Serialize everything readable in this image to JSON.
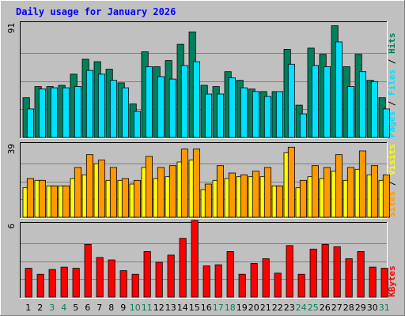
{
  "colors": {
    "background": "#c0c0c0",
    "plot_bg": "#c0c0c0",
    "hits": "#00805c",
    "files": "#00e0ff",
    "pages": "#00e0ff",
    "visits": "#ffff00",
    "sites": "#ff9900",
    "kbytes": "#ff0000",
    "title": "#0000ff",
    "weekend": "#00805c"
  },
  "chart_data": {
    "type": "bar",
    "title": "Daily usage for January 2026",
    "categories": [
      "1",
      "2",
      "3",
      "4",
      "5",
      "6",
      "7",
      "8",
      "9",
      "10",
      "11",
      "12",
      "13",
      "14",
      "15",
      "16",
      "17",
      "18",
      "19",
      "20",
      "21",
      "22",
      "23",
      "24",
      "25",
      "26",
      "27",
      "28",
      "29",
      "30",
      "31"
    ],
    "weekend_days": [
      "3",
      "4",
      "10",
      "11",
      "17",
      "18",
      "24",
      "25",
      "31"
    ],
    "panels": [
      {
        "name": "requests",
        "ymax": 91,
        "ymax_label": "91",
        "right_label": [
          "Pages",
          " / ",
          "Files",
          " / ",
          "Hits"
        ],
        "right_label_colors": [
          "#00e0ff",
          "#000000",
          "#00e0ff",
          "#000000",
          "#00805c"
        ],
        "series": [
          {
            "name": "Hits",
            "color": "#00805c",
            "values": [
              32,
              41,
              41,
              42,
              51,
              63,
              61,
              55,
              44,
              27,
              69,
              57,
              62,
              75,
              85,
              42,
              41,
              53,
              46,
              39,
              37,
              37,
              71,
              26,
              72,
              67,
              90,
              57,
              67,
              46,
              32
            ]
          },
          {
            "name": "Files",
            "color": "#00e0ff",
            "values": [
              23,
              39,
              40,
              40,
              41,
              54,
              51,
              46,
              40,
              21,
              57,
              49,
              47,
              58,
              61,
              35,
              35,
              48,
              40,
              37,
              33,
              37,
              59,
              19,
              58,
              57,
              77,
              41,
              53,
              45,
              23
            ]
          },
          {
            "name": "Pages",
            "color": "#00e0ff",
            "values": [
              23,
              39,
              40,
              40,
              41,
              54,
              51,
              46,
              40,
              21,
              57,
              49,
              47,
              58,
              61,
              35,
              35,
              48,
              40,
              37,
              33,
              37,
              59,
              19,
              58,
              57,
              77,
              41,
              53,
              45,
              23
            ]
          }
        ]
      },
      {
        "name": "visitors",
        "ymax": 39,
        "ymax_label": "39",
        "right_label": [
          "Sites",
          " / ",
          "Visits"
        ],
        "right_label_colors": [
          "#ff9900",
          "#000000",
          "#ffff00"
        ],
        "series": [
          {
            "name": "Visits",
            "color": "#ffff00",
            "values": [
              16,
              20,
              17,
              17,
              21,
              23,
              29,
              20,
              20,
              18,
              27,
              21,
              22,
              30,
              31,
              15,
              20,
              21,
              22,
              22,
              22,
              17,
              35,
              16,
              22,
              21,
              25,
              20,
              26,
              23,
              20
            ]
          },
          {
            "name": "Sites",
            "color": "#ff9900",
            "values": [
              21,
              20,
              17,
              17,
              27,
              34,
              31,
              27,
              21,
              20,
              33,
              27,
              28,
              37,
              37,
              18,
              28,
              24,
              23,
              25,
              27,
              17,
              38,
              20,
              28,
              27,
              34,
              27,
              36,
              28,
              23
            ]
          }
        ]
      },
      {
        "name": "kbytes",
        "ymax": 6,
        "ymax_label": "6",
        "right_label": [
          "KBytes"
        ],
        "right_label_colors": [
          "#ff0000"
        ],
        "series": [
          {
            "name": "KBytes",
            "color": "#ff0000",
            "values": [
              2.4,
              1.9,
              2.3,
              2.5,
              2.4,
              4.4,
              3.3,
              3.1,
              2.2,
              1.9,
              3.8,
              2.9,
              3.5,
              4.9,
              6.4,
              2.6,
              2.7,
              3.8,
              1.9,
              2.8,
              3.2,
              2.0,
              4.3,
              1.9,
              4.0,
              4.4,
              4.2,
              3.2,
              3.8,
              2.5,
              2.4
            ]
          }
        ]
      }
    ]
  }
}
